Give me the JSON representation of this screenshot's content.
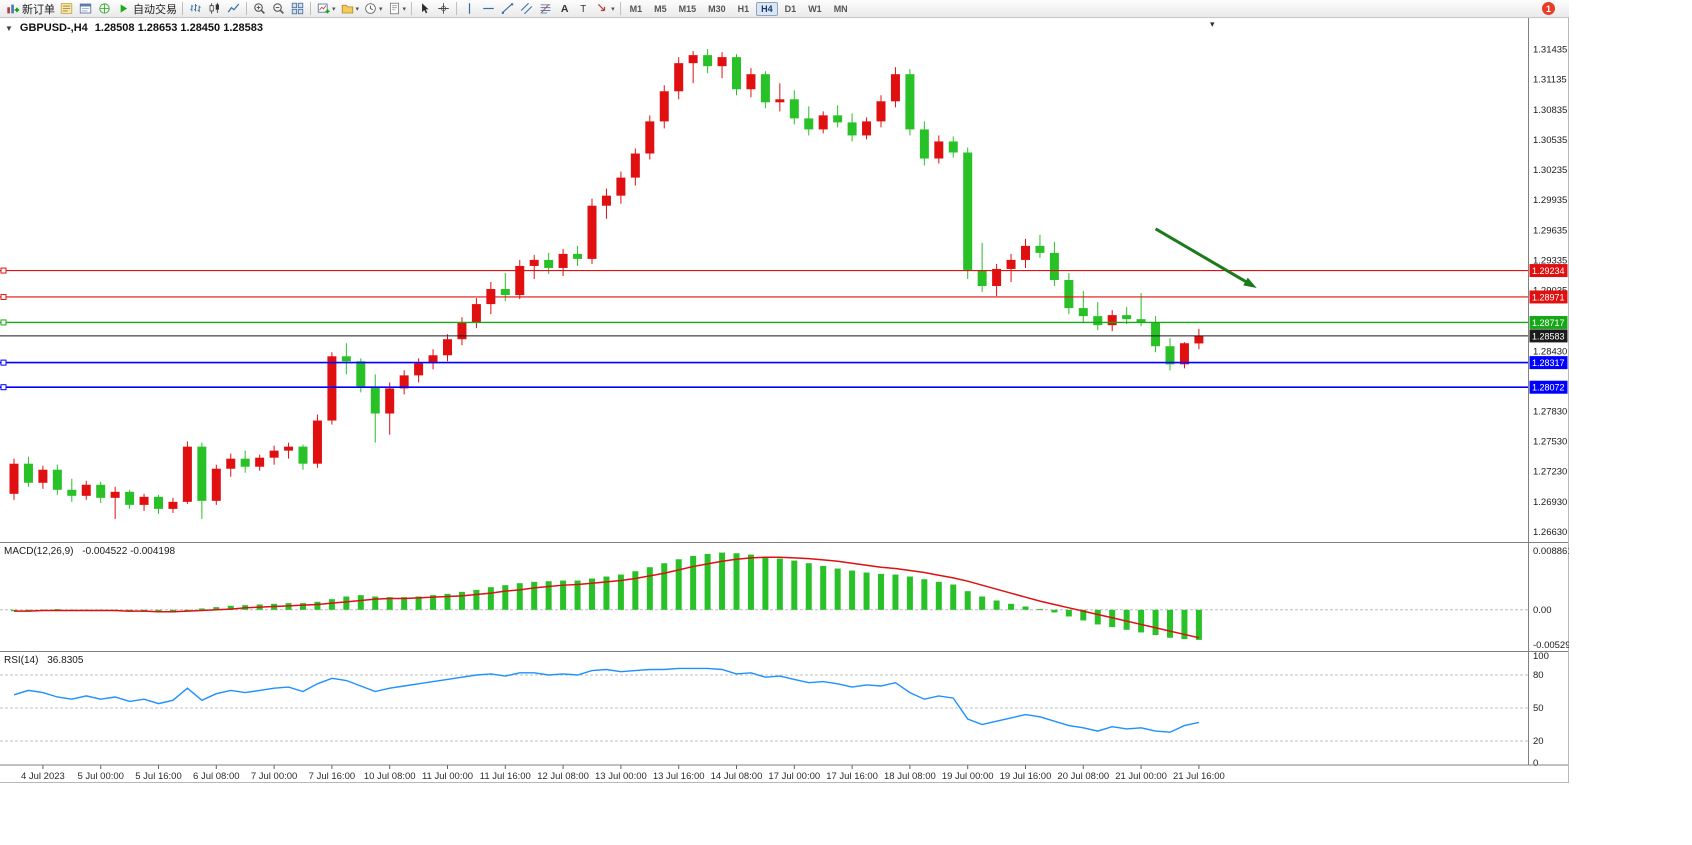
{
  "toolbar": {
    "notification_badge": "1",
    "active_timeframe": "H4",
    "timeframes": [
      "M1",
      "M5",
      "M15",
      "M30",
      "H1",
      "H4",
      "D1",
      "W1",
      "MN"
    ],
    "items": [
      {
        "name": "new-order",
        "label": "新订单",
        "icon": "new-order"
      },
      {
        "name": "market-watch",
        "icon": "market-watch"
      },
      {
        "name": "data-window",
        "icon": "data-window"
      },
      {
        "name": "navigator",
        "icon": "navigator"
      },
      {
        "name": "auto-trading",
        "label": "自动交易",
        "icon": "play"
      },
      {
        "sep": true
      },
      {
        "name": "bar-chart",
        "icon": "bars"
      },
      {
        "name": "candlestick-chart",
        "icon": "candles"
      },
      {
        "name": "line-chart",
        "icon": "line"
      },
      {
        "sep": true
      },
      {
        "name": "zoom-in",
        "icon": "zoom-in"
      },
      {
        "name": "zoom-out",
        "icon": "zoom-out"
      },
      {
        "name": "tile-windows",
        "icon": "tile"
      },
      {
        "sep": true
      },
      {
        "name": "new-chart",
        "icon": "new-chart",
        "caret": true
      },
      {
        "name": "profiles",
        "icon": "profiles",
        "caret": true
      },
      {
        "name": "period",
        "icon": "clock",
        "caret": true
      },
      {
        "name": "templates",
        "icon": "template",
        "caret": true
      },
      {
        "sep": true
      },
      {
        "name": "cursor",
        "icon": "cursor"
      },
      {
        "name": "crosshair",
        "icon": "crosshair"
      },
      {
        "sep": true
      },
      {
        "name": "vertical-line",
        "icon": "vline"
      },
      {
        "name": "horizontal-line",
        "icon": "hline"
      },
      {
        "name": "trendline",
        "icon": "trend"
      },
      {
        "name": "equidistant-channel",
        "icon": "channel"
      },
      {
        "name": "fibonacci",
        "icon": "fibo"
      },
      {
        "name": "text",
        "icon": "text"
      },
      {
        "name": "text-label",
        "icon": "label"
      },
      {
        "name": "arrow-objects",
        "icon": "arrows",
        "caret": true
      },
      {
        "sep": true
      }
    ]
  },
  "chart": {
    "title": {
      "symbol_period": "GBPUSD-,H4",
      "ohlc": "1.28508 1.28653 1.28450 1.28583"
    },
    "icons": {
      "one_click": "▼",
      "shift_marker": "▾"
    },
    "colors": {
      "up": "#e01010",
      "down": "#28c128",
      "macd_hist": "#28c128",
      "macd_signal": "#dd1111",
      "rsi": "#1e90ff",
      "line_red": "#e01010",
      "line_green": "#17a817",
      "line_blue": "#0000ff",
      "current": "#1a1a1a",
      "axis_text": "#1a1a1a",
      "bg": "#ffffff"
    },
    "price_axis": {
      "labels": [
        {
          "text": "1.31435",
          "value": 1.31435
        },
        {
          "text": "1.31135",
          "value": 1.31135
        },
        {
          "text": "1.30835",
          "value": 1.30835
        },
        {
          "text": "1.30535",
          "value": 1.30535
        },
        {
          "text": "1.30235",
          "value": 1.30235
        },
        {
          "text": "1.29935",
          "value": 1.29935
        },
        {
          "text": "1.29635",
          "value": 1.29635
        },
        {
          "text": "1.29335",
          "value": 1.29335
        },
        {
          "text": "1.29035",
          "value": 1.29035
        },
        {
          "text": "1.28430",
          "value": 1.2843
        },
        {
          "text": "1.27830",
          "value": 1.2783
        },
        {
          "text": "1.27530",
          "value": 1.2753
        },
        {
          "text": "1.27230",
          "value": 1.2723
        },
        {
          "text": "1.26930",
          "value": 1.2693
        },
        {
          "text": "1.26630",
          "value": 1.2663
        }
      ]
    },
    "hlines": [
      {
        "price": 1.29234,
        "tag": "1.29234",
        "color": "#e01010",
        "width": 1.2
      },
      {
        "price": 1.28971,
        "tag": "1.28971",
        "color": "#e01010",
        "width": 1.2
      },
      {
        "price": 1.28717,
        "tag": "1.28717",
        "color": "#17a817",
        "width": 1.4
      },
      {
        "price": 1.28317,
        "tag": "1.28317",
        "color": "#0000ff",
        "width": 1.6
      },
      {
        "price": 1.28072,
        "tag": "1.28072",
        "color": "#0000ff",
        "width": 1.6
      }
    ],
    "current_price": {
      "price": 1.28583,
      "tag": "1.28583",
      "color": "#1a1a1a"
    },
    "annotations": {
      "arrow": {
        "from_bar": 79,
        "from_price": 1.2965,
        "to_bar": 86,
        "to_price": 1.2906,
        "color": "#1b7a1b"
      }
    }
  },
  "chart_data": {
    "type": "candlestick",
    "symbol": "GBPUSD",
    "period": "H4",
    "ylim": [
      1.2654,
      1.317
    ],
    "x_labels": [
      {
        "bar": 2,
        "text": "4 Jul 2023"
      },
      {
        "bar": 6,
        "text": "5 Jul 00:00"
      },
      {
        "bar": 10,
        "text": "5 Jul 16:00"
      },
      {
        "bar": 14,
        "text": "6 Jul 08:00"
      },
      {
        "bar": 18,
        "text": "7 Jul 00:00"
      },
      {
        "bar": 22,
        "text": "7 Jul 16:00"
      },
      {
        "bar": 26,
        "text": "10 Jul 08:00"
      },
      {
        "bar": 30,
        "text": "11 Jul 00:00"
      },
      {
        "bar": 34,
        "text": "11 Jul 16:00"
      },
      {
        "bar": 38,
        "text": "12 Jul 08:00"
      },
      {
        "bar": 42,
        "text": "13 Jul 00:00"
      },
      {
        "bar": 46,
        "text": "13 Jul 16:00"
      },
      {
        "bar": 50,
        "text": "14 Jul 08:00"
      },
      {
        "bar": 54,
        "text": "17 Jul 00:00"
      },
      {
        "bar": 58,
        "text": "17 Jul 16:00"
      },
      {
        "bar": 62,
        "text": "18 Jul 08:00"
      },
      {
        "bar": 66,
        "text": "19 Jul 00:00"
      },
      {
        "bar": 70,
        "text": "19 Jul 16:00"
      },
      {
        "bar": 74,
        "text": "20 Jul 08:00"
      },
      {
        "bar": 78,
        "text": "21 Jul 00:00"
      },
      {
        "bar": 82,
        "text": "21 Jul 16:00"
      }
    ],
    "candles": [
      [
        1.2701,
        1.2736,
        1.2695,
        1.2731
      ],
      [
        1.2731,
        1.2738,
        1.2708,
        1.2712
      ],
      [
        1.2712,
        1.2729,
        1.2706,
        1.2725
      ],
      [
        1.2725,
        1.273,
        1.27,
        1.2705
      ],
      [
        1.2705,
        1.2716,
        1.2693,
        1.2699
      ],
      [
        1.2699,
        1.2714,
        1.2695,
        1.271
      ],
      [
        1.271,
        1.2713,
        1.2692,
        1.2697
      ],
      [
        1.2697,
        1.2708,
        1.2676,
        1.2703
      ],
      [
        1.2703,
        1.2705,
        1.2686,
        1.269
      ],
      [
        1.269,
        1.2701,
        1.2684,
        1.2698
      ],
      [
        1.2698,
        1.27,
        1.2681,
        1.2686
      ],
      [
        1.2686,
        1.2697,
        1.2682,
        1.2693
      ],
      [
        1.2693,
        1.2753,
        1.2691,
        1.2748
      ],
      [
        1.2748,
        1.2752,
        1.2676,
        1.2694
      ],
      [
        1.2694,
        1.273,
        1.269,
        1.2726
      ],
      [
        1.2726,
        1.2741,
        1.2718,
        1.2736
      ],
      [
        1.2736,
        1.2744,
        1.2722,
        1.2728
      ],
      [
        1.2728,
        1.274,
        1.2724,
        1.2737
      ],
      [
        1.2737,
        1.2749,
        1.273,
        1.2744
      ],
      [
        1.2744,
        1.2752,
        1.2736,
        1.2748
      ],
      [
        1.2748,
        1.275,
        1.2725,
        1.2731
      ],
      [
        1.2731,
        1.278,
        1.2727,
        1.2774
      ],
      [
        1.2774,
        1.2842,
        1.277,
        1.2838
      ],
      [
        1.2838,
        1.2851,
        1.282,
        1.2833
      ],
      [
        1.2833,
        1.2836,
        1.2802,
        1.2808
      ],
      [
        1.2808,
        1.282,
        1.2752,
        1.2781
      ],
      [
        1.2781,
        1.2812,
        1.276,
        1.2806
      ],
      [
        1.2806,
        1.2824,
        1.28,
        1.2819
      ],
      [
        1.2819,
        1.2836,
        1.2812,
        1.2831
      ],
      [
        1.2831,
        1.2845,
        1.2825,
        1.2839
      ],
      [
        1.2839,
        1.286,
        1.2833,
        1.2855
      ],
      [
        1.2855,
        1.2877,
        1.2849,
        1.2872
      ],
      [
        1.2872,
        1.2896,
        1.2866,
        1.289
      ],
      [
        1.289,
        1.2912,
        1.288,
        1.2905
      ],
      [
        1.2905,
        1.2921,
        1.2893,
        1.2899
      ],
      [
        1.2899,
        1.2934,
        1.2895,
        1.2928
      ],
      [
        1.2928,
        1.2939,
        1.2915,
        1.2934
      ],
      [
        1.2934,
        1.2941,
        1.292,
        1.2926
      ],
      [
        1.2926,
        1.2945,
        1.2918,
        1.294
      ],
      [
        1.294,
        1.2948,
        1.2928,
        1.2935
      ],
      [
        1.2935,
        1.2995,
        1.293,
        1.2988
      ],
      [
        1.2988,
        1.3005,
        1.2975,
        1.2998
      ],
      [
        1.2998,
        1.3022,
        1.299,
        1.3016
      ],
      [
        1.3016,
        1.3045,
        1.3008,
        1.304
      ],
      [
        1.304,
        1.3078,
        1.3034,
        1.3072
      ],
      [
        1.3072,
        1.3108,
        1.3065,
        1.3102
      ],
      [
        1.3102,
        1.3136,
        1.3094,
        1.313
      ],
      [
        1.313,
        1.3142,
        1.311,
        1.3138
      ],
      [
        1.3138,
        1.3144,
        1.312,
        1.3127
      ],
      [
        1.3127,
        1.3141,
        1.3115,
        1.3136
      ],
      [
        1.3136,
        1.3139,
        1.3098,
        1.3104
      ],
      [
        1.3104,
        1.3125,
        1.3096,
        1.3119
      ],
      [
        1.3119,
        1.3122,
        1.3085,
        1.3091
      ],
      [
        1.3091,
        1.311,
        1.3082,
        1.3094
      ],
      [
        1.3094,
        1.3103,
        1.3069,
        1.3075
      ],
      [
        1.3075,
        1.3087,
        1.3058,
        1.3064
      ],
      [
        1.3064,
        1.3082,
        1.306,
        1.3078
      ],
      [
        1.3078,
        1.3088,
        1.3066,
        1.3071
      ],
      [
        1.3071,
        1.308,
        1.3052,
        1.3058
      ],
      [
        1.3058,
        1.3076,
        1.3054,
        1.3072
      ],
      [
        1.3072,
        1.3098,
        1.3066,
        1.3092
      ],
      [
        1.3092,
        1.3126,
        1.3086,
        1.3119
      ],
      [
        1.3119,
        1.3124,
        1.3058,
        1.3064
      ],
      [
        1.3064,
        1.3072,
        1.3028,
        1.3035
      ],
      [
        1.3035,
        1.3058,
        1.303,
        1.3052
      ],
      [
        1.3052,
        1.3057,
        1.3036,
        1.3041
      ],
      [
        1.3041,
        1.3046,
        1.2915,
        1.2924
      ],
      [
        1.2924,
        1.2951,
        1.2902,
        1.2908
      ],
      [
        1.2908,
        1.293,
        1.2898,
        1.2925
      ],
      [
        1.2925,
        1.294,
        1.2912,
        1.2934
      ],
      [
        1.2934,
        1.2955,
        1.2926,
        1.2948
      ],
      [
        1.2948,
        1.2959,
        1.2936,
        1.2941
      ],
      [
        1.2941,
        1.2952,
        1.2908,
        1.2914
      ],
      [
        1.2914,
        1.2921,
        1.288,
        1.2886
      ],
      [
        1.2886,
        1.2903,
        1.2872,
        1.2878
      ],
      [
        1.2878,
        1.2892,
        1.2864,
        1.2869
      ],
      [
        1.2869,
        1.2884,
        1.2863,
        1.2879
      ],
      [
        1.2879,
        1.2887,
        1.287,
        1.2875
      ],
      [
        1.2875,
        1.2901,
        1.2868,
        1.2872
      ],
      [
        1.2872,
        1.2878,
        1.2842,
        1.2848
      ],
      [
        1.2848,
        1.2856,
        1.2824,
        1.283
      ],
      [
        1.283,
        1.2852,
        1.2826,
        1.2851
      ],
      [
        1.28508,
        1.28653,
        1.2845,
        1.28583
      ]
    ],
    "indicators": {
      "macd": {
        "label": "MACD(12,26,9)",
        "values_label": "-0.004522 -0.004198",
        "scale_labels": [
          {
            "text": "0.008861",
            "value": 0.008861
          },
          {
            "text": "0.00",
            "value": 0
          },
          {
            "text": "-0.005294",
            "value": -0.005294
          }
        ],
        "histogram": [
          -0.0002,
          -0.0001,
          0.0,
          0.0001,
          0.0,
          0.0,
          -0.0001,
          -0.0002,
          -0.0003,
          -0.0003,
          -0.0004,
          -0.0004,
          0.0,
          0.0002,
          0.0004,
          0.0006,
          0.0007,
          0.0008,
          0.0009,
          0.001,
          0.001,
          0.0012,
          0.0016,
          0.002,
          0.0022,
          0.002,
          0.0019,
          0.0019,
          0.002,
          0.0022,
          0.0024,
          0.0027,
          0.003,
          0.0034,
          0.0037,
          0.004,
          0.0042,
          0.0043,
          0.0044,
          0.0044,
          0.0047,
          0.005,
          0.0053,
          0.0058,
          0.0064,
          0.007,
          0.0076,
          0.0081,
          0.0084,
          0.0086,
          0.0085,
          0.0083,
          0.008,
          0.0077,
          0.0074,
          0.007,
          0.0066,
          0.0062,
          0.0059,
          0.0056,
          0.0054,
          0.0053,
          0.005,
          0.0046,
          0.0042,
          0.0038,
          0.0028,
          0.002,
          0.0014,
          0.0009,
          0.0005,
          0.0001,
          -0.0004,
          -0.001,
          -0.0016,
          -0.0022,
          -0.0026,
          -0.003,
          -0.0034,
          -0.0038,
          -0.0042,
          -0.0044,
          -0.004522
        ],
        "signal": [
          -0.0002,
          -0.0002,
          -0.0001,
          -0.0001,
          -0.0001,
          -0.0001,
          -0.0001,
          -0.0001,
          -0.0002,
          -0.0002,
          -0.0003,
          -0.0003,
          -0.0002,
          -0.0001,
          0.0,
          0.0001,
          0.0003,
          0.0004,
          0.0005,
          0.0006,
          0.0007,
          0.0008,
          0.001,
          0.0012,
          0.0014,
          0.0016,
          0.0017,
          0.0017,
          0.0018,
          0.0019,
          0.002,
          0.0021,
          0.0023,
          0.0025,
          0.0028,
          0.003,
          0.0033,
          0.0035,
          0.0037,
          0.0038,
          0.004,
          0.0042,
          0.0044,
          0.0047,
          0.0051,
          0.0055,
          0.006,
          0.0065,
          0.0069,
          0.0073,
          0.0076,
          0.0078,
          0.0079,
          0.0079,
          0.0078,
          0.0077,
          0.0075,
          0.0073,
          0.007,
          0.0067,
          0.0064,
          0.0062,
          0.0059,
          0.0056,
          0.0052,
          0.0048,
          0.0043,
          0.0037,
          0.0031,
          0.0025,
          0.0019,
          0.0013,
          0.0008,
          0.0003,
          -0.0002,
          -0.0007,
          -0.0012,
          -0.0017,
          -0.0022,
          -0.0027,
          -0.0032,
          -0.0037,
          -0.004198
        ]
      },
      "rsi": {
        "label": "RSI(14)",
        "value_label": "36.8305",
        "levels": [
          80,
          50,
          20
        ],
        "scale_labels": [
          {
            "text": "100",
            "value": 100
          },
          {
            "text": "80",
            "value": 80
          },
          {
            "text": "50",
            "value": 50
          },
          {
            "text": "20",
            "value": 20
          },
          {
            "text": "0",
            "value": 0
          }
        ],
        "values": [
          62,
          66,
          64,
          60,
          58,
          61,
          58,
          60,
          56,
          58,
          54,
          57,
          68,
          57,
          63,
          66,
          64,
          66,
          68,
          69,
          65,
          72,
          77,
          75,
          70,
          65,
          68,
          70,
          72,
          74,
          76,
          78,
          80,
          81,
          79,
          82,
          82,
          80,
          81,
          80,
          84,
          85,
          83,
          84,
          85,
          85,
          86,
          86,
          86,
          85,
          81,
          82,
          78,
          79,
          76,
          73,
          74,
          72,
          69,
          71,
          70,
          73,
          64,
          58,
          61,
          59,
          40,
          35,
          38,
          41,
          44,
          42,
          38,
          34,
          32,
          29,
          33,
          31,
          32,
          29,
          28,
          34,
          36.83
        ]
      }
    }
  }
}
